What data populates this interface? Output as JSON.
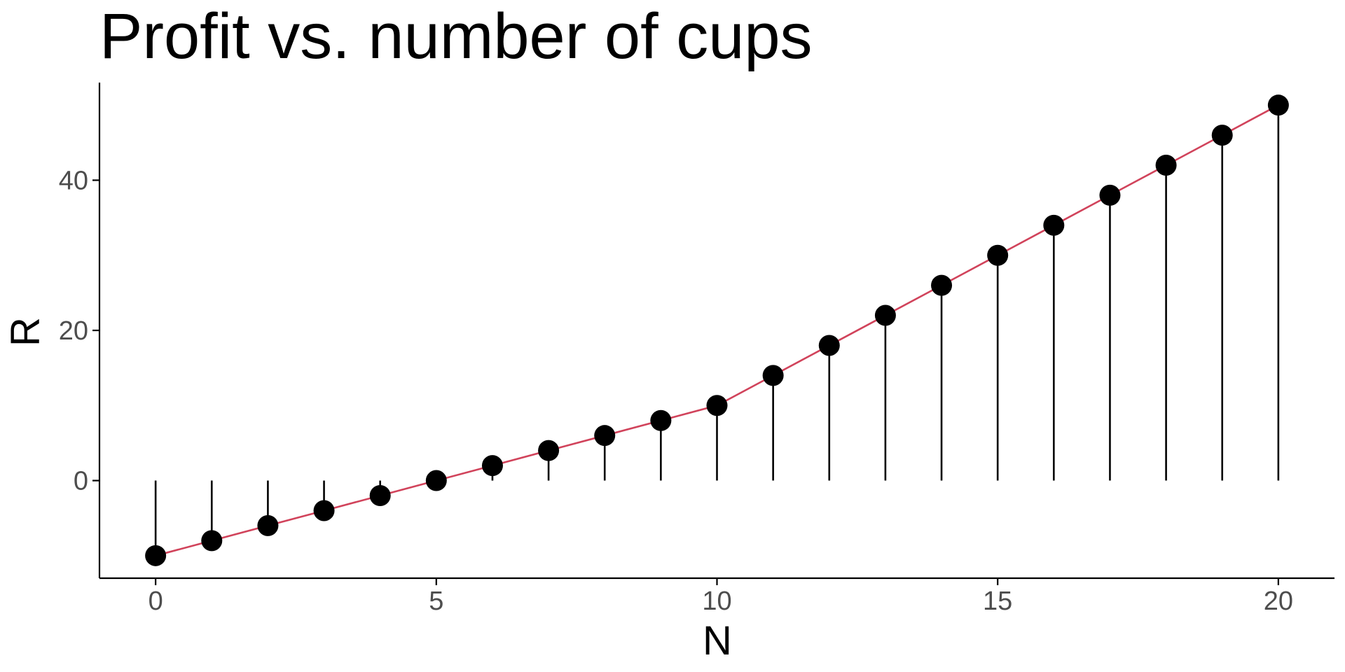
{
  "chart_data": {
    "type": "scatter",
    "title": "Profit vs. number of cups",
    "xlabel": "N",
    "ylabel": "R",
    "x": [
      0,
      1,
      2,
      3,
      4,
      5,
      6,
      7,
      8,
      9,
      10,
      11,
      12,
      13,
      14,
      15,
      16,
      17,
      18,
      19,
      20
    ],
    "y": [
      -10,
      -8,
      -6,
      -4,
      -2,
      0,
      2,
      4,
      6,
      8,
      10,
      14,
      18,
      22,
      26,
      30,
      34,
      38,
      42,
      46,
      50
    ],
    "xlim": [
      -1,
      21
    ],
    "ylim": [
      -13,
      53
    ],
    "x_ticks": [
      0,
      5,
      10,
      15,
      20
    ],
    "y_ticks": [
      0,
      20,
      40
    ],
    "x_tick_labels": [
      "0",
      "5",
      "10",
      "15",
      "20"
    ],
    "y_tick_labels": [
      "0",
      "20",
      "40"
    ],
    "stem_baseline": 0,
    "grid": false,
    "colors": {
      "points": "#000000",
      "line": "#d1435b",
      "stems": "#000000",
      "axes": "#000000",
      "tick_labels": "#4d4d4d"
    }
  }
}
